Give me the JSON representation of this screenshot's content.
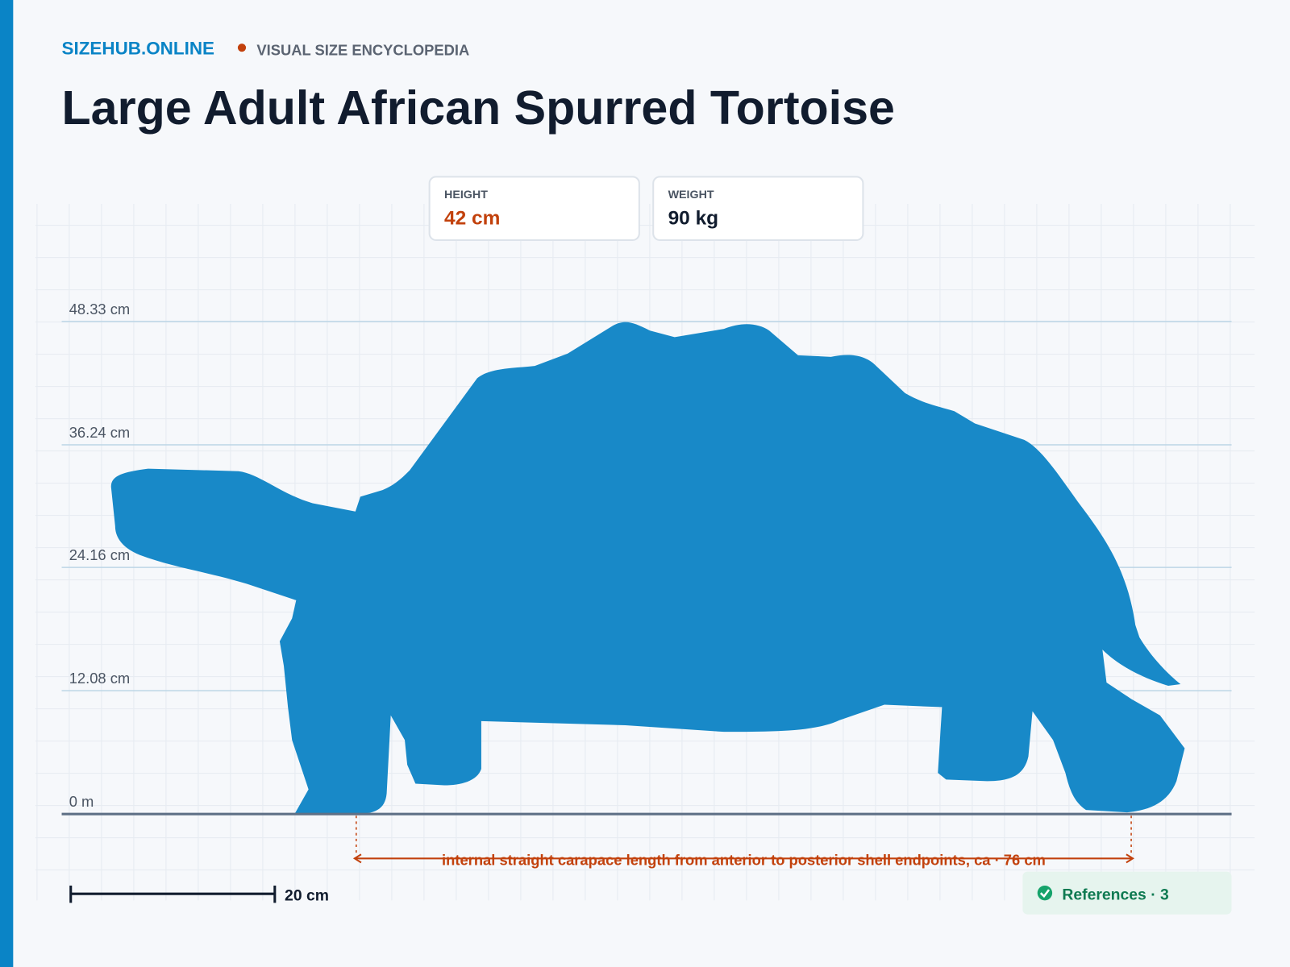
{
  "brand": "SIZEHUB.ONLINE",
  "tagline": "VISUAL SIZE ENCYCLOPEDIA",
  "title": "Large Adult African Spurred Tortoise",
  "stats": [
    {
      "label": "HEIGHT",
      "value": "42 cm"
    },
    {
      "label": "WEIGHT",
      "value": "90 kg"
    }
  ],
  "reference_lines": [
    "48.33 cm",
    "36.24 cm",
    "24.16 cm",
    "12.08 cm",
    "0 m"
  ],
  "measurement": "internal straight carapace length from anterior to posterior shell endpoints, ca · 76 cm",
  "scale_bar": "20 cm",
  "references": "References · 3"
}
